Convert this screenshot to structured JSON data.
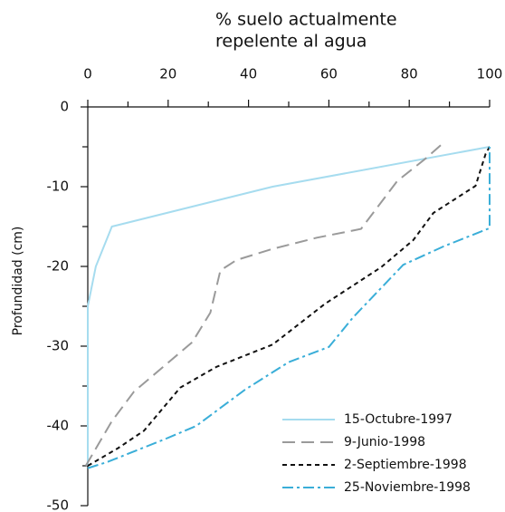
{
  "chart_data": {
    "type": "line",
    "xlabel": [
      "% suelo actualmente",
      "repelente al agua"
    ],
    "ylabel": "Profundidad (cm)",
    "xlim": [
      0,
      100
    ],
    "xticks": [
      0,
      20,
      40,
      60,
      80,
      100
    ],
    "ylim": [
      -50,
      0
    ],
    "yticks": [
      0,
      -10,
      -20,
      -30,
      -40,
      -50
    ],
    "legend": "lower right",
    "series": [
      {
        "name": "15-Octubre-1997",
        "color": "#a6dcef",
        "dash": "solid",
        "x": [
          0,
          0,
          2,
          6,
          46,
          100
        ],
        "values": [
          -45,
          -25,
          -20,
          -15,
          -10,
          -5
        ]
      },
      {
        "name": "9-Junio-1998",
        "color": "#9a9a9a",
        "dash": "dashed",
        "x": [
          -0.5,
          6,
          11.5,
          26,
          30.5,
          33,
          37,
          46,
          57,
          68,
          77,
          84,
          88.5
        ],
        "values": [
          -45,
          -39.4,
          -35.7,
          -29.5,
          -25.8,
          -20.5,
          -19.2,
          -17.8,
          -16.4,
          -15.3,
          -9.3,
          -6.5,
          -4.5
        ]
      },
      {
        "name": "2-Septiembre-1998",
        "color": "#111111",
        "dash": "dotted",
        "x": [
          0,
          7.5,
          14,
          23,
          32,
          46,
          59,
          73,
          81,
          86,
          96.5,
          99,
          100
        ],
        "values": [
          -45,
          -42.8,
          -40.6,
          -35.2,
          -32.6,
          -29.8,
          -24.7,
          -20.1,
          -16.7,
          -13.3,
          -9.9,
          -5.9,
          -5
        ]
      },
      {
        "name": "25-Noviembre-1998",
        "color": "#3aaed8",
        "dash": "dashdot",
        "x": [
          0,
          5,
          19,
          27,
          39,
          50,
          60,
          66,
          78.5,
          88.5,
          100,
          100
        ],
        "values": [
          -45.3,
          -44.5,
          -41.7,
          -40,
          -35.5,
          -32,
          -30.1,
          -26.4,
          -19.8,
          -17.5,
          -15.2,
          -5
        ]
      }
    ]
  }
}
